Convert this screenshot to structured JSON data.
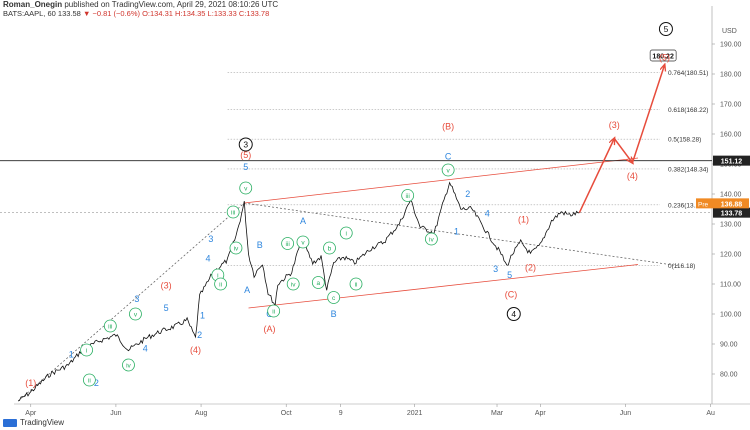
{
  "header": {
    "author": "Roman_Onegin",
    "published": "published on TradingView.com, April 29, 2021 08:10:26 UTC",
    "symbol": "BATS:AAPL, 60",
    "last": "133.58",
    "change": "▼ −0.81 (−0.6%)",
    "ohlc": "O:134.31 H:134.35 L:133.33 C:133.78"
  },
  "footer": {
    "logo_text": "TradingView"
  },
  "chart_data": {
    "type": "line",
    "title": "BATS:AAPL, 60",
    "currency": "USD",
    "ylim": [
      70,
      198
    ],
    "y_ticks": [
      80,
      90,
      100,
      110,
      120,
      130,
      140,
      150,
      160,
      170,
      180,
      190
    ],
    "x_range": [
      "2020-03-20",
      "2021-08-02"
    ],
    "x_ticks": [
      {
        "label": "Apr",
        "date": "2020-04-01"
      },
      {
        "label": "Jun",
        "date": "2020-06-01"
      },
      {
        "label": "Aug",
        "date": "2020-08-01"
      },
      {
        "label": "Oct",
        "date": "2020-10-01"
      },
      {
        "label": "9",
        "date": "2020-11-09"
      },
      {
        "label": "2021",
        "date": "2021-01-01"
      },
      {
        "label": "Mar",
        "date": "2021-03-01"
      },
      {
        "label": "Apr",
        "date": "2021-04-01"
      },
      {
        "label": "Jun",
        "date": "2021-06-01"
      },
      {
        "label": "Au",
        "date": "2021-08-01"
      }
    ],
    "price_path": [
      [
        "2020-03-23",
        71
      ],
      [
        "2020-04-01",
        74
      ],
      [
        "2020-04-15",
        80
      ],
      [
        "2020-04-28",
        83
      ],
      [
        "2020-05-08",
        88
      ],
      [
        "2020-05-20",
        91
      ],
      [
        "2020-06-01",
        93
      ],
      [
        "2020-06-10",
        88
      ],
      [
        "2020-06-23",
        92
      ],
      [
        "2020-07-02",
        94
      ],
      [
        "2020-07-14",
        96
      ],
      [
        "2020-07-22",
        98
      ],
      [
        "2020-07-28",
        92
      ],
      [
        "2020-07-31",
        106
      ],
      [
        "2020-08-10",
        114
      ],
      [
        "2020-08-20",
        118
      ],
      [
        "2020-08-26",
        126
      ],
      [
        "2020-09-01",
        137
      ],
      [
        "2020-09-04",
        120
      ],
      [
        "2020-09-08",
        113
      ],
      [
        "2020-09-14",
        117
      ],
      [
        "2020-09-18",
        107
      ],
      [
        "2020-09-23",
        103
      ],
      [
        "2020-09-25",
        110
      ],
      [
        "2020-10-05",
        114
      ],
      [
        "2020-10-12",
        125
      ],
      [
        "2020-10-20",
        117
      ],
      [
        "2020-10-26",
        119
      ],
      [
        "2020-10-30",
        108
      ],
      [
        "2020-11-04",
        117
      ],
      [
        "2020-11-11",
        119
      ],
      [
        "2020-11-19",
        117
      ],
      [
        "2020-12-01",
        122
      ],
      [
        "2020-12-10",
        124
      ],
      [
        "2020-12-21",
        130
      ],
      [
        "2020-12-29",
        138
      ],
      [
        "2021-01-05",
        129
      ],
      [
        "2021-01-15",
        127
      ],
      [
        "2021-01-26",
        144
      ],
      [
        "2021-02-03",
        135
      ],
      [
        "2021-02-11",
        135
      ],
      [
        "2021-02-22",
        127
      ],
      [
        "2021-03-04",
        120
      ],
      [
        "2021-03-08",
        116
      ],
      [
        "2021-03-12",
        120
      ],
      [
        "2021-03-18",
        124
      ],
      [
        "2021-03-25",
        120
      ],
      [
        "2021-04-01",
        123
      ],
      [
        "2021-04-09",
        131
      ],
      [
        "2021-04-16",
        134
      ],
      [
        "2021-04-22",
        133
      ],
      [
        "2021-04-29",
        133.78
      ]
    ],
    "projection_path": [
      [
        "2021-04-29",
        133.78
      ],
      [
        "2021-05-24",
        158.5
      ],
      [
        "2021-06-06",
        150.4
      ],
      [
        "2021-06-29",
        183
      ]
    ],
    "price_lines": [
      {
        "label": "151.12",
        "value": 151.12
      },
      {
        "label": "133.78",
        "value": 133.78
      }
    ],
    "price_tags": [
      {
        "label": "Pre",
        "value": "136.88",
        "y": 136.88
      }
    ],
    "fib_levels": [
      {
        "label": "0.764(180.51)",
        "value": 180.51
      },
      {
        "label": "0.618(168.22)",
        "value": 168.22
      },
      {
        "label": "0.5(158.28)",
        "value": 158.28
      },
      {
        "label": "0.382(148.34)",
        "value": 148.34
      },
      {
        "label": "0.236(13…",
        "value": 136.4
      },
      {
        "label": "0(116.18)",
        "value": 116.18
      }
    ],
    "fib_start": "2020-08-20",
    "fib_target_box": "180.22",
    "channel_lines": [
      {
        "from": [
          "2020-09-01",
          137
        ],
        "to": [
          "2021-06-10",
          152
        ],
        "color": "#e74c3c"
      },
      {
        "from": [
          "2020-09-04",
          102
        ],
        "to": [
          "2021-06-10",
          116.5
        ],
        "color": "#e74c3c"
      }
    ],
    "dotted_lines": [
      {
        "from": [
          "2020-03-23",
          71
        ],
        "to": [
          "2020-09-01",
          137
        ]
      },
      {
        "from": [
          "2020-09-01",
          137
        ],
        "to": [
          "2021-07-10",
          116
        ]
      }
    ],
    "wave_labels": [
      {
        "text": "(1)",
        "d": "2020-04-01",
        "y": 77,
        "color": "#e74c3c",
        "style": "paren"
      },
      {
        "text": "1",
        "d": "2020-04-30",
        "y": 86.5,
        "color": "#2e86de",
        "style": "plain"
      },
      {
        "text": "2",
        "d": "2020-05-18",
        "y": 77,
        "color": "#2e86de",
        "style": "plain"
      },
      {
        "text": "i",
        "d": "2020-05-11",
        "y": 88,
        "color": "#27ae60",
        "style": "circle"
      },
      {
        "text": "ii",
        "d": "2020-05-13",
        "y": 78,
        "color": "#27ae60",
        "style": "circle"
      },
      {
        "text": "iii",
        "d": "2020-05-28",
        "y": 96,
        "color": "#27ae60",
        "style": "circle"
      },
      {
        "text": "iv",
        "d": "2020-06-10",
        "y": 83,
        "color": "#27ae60",
        "style": "circle"
      },
      {
        "text": "v",
        "d": "2020-06-15",
        "y": 100,
        "color": "#27ae60",
        "style": "circle"
      },
      {
        "text": "3",
        "d": "2020-06-16",
        "y": 105,
        "color": "#2e86de",
        "style": "plain"
      },
      {
        "text": "4",
        "d": "2020-06-22",
        "y": 88.5,
        "color": "#2e86de",
        "style": "plain"
      },
      {
        "text": "5",
        "d": "2020-07-07",
        "y": 102,
        "color": "#2e86de",
        "style": "plain"
      },
      {
        "text": "(3)",
        "d": "2020-07-07",
        "y": 109.5,
        "color": "#e74c3c",
        "style": "paren"
      },
      {
        "text": "1",
        "d": "2020-08-02",
        "y": 99.5,
        "color": "#2e86de",
        "style": "plain"
      },
      {
        "text": "2",
        "d": "2020-07-31",
        "y": 93,
        "color": "#2e86de",
        "style": "plain"
      },
      {
        "text": "(4)",
        "d": "2020-07-28",
        "y": 88,
        "color": "#e74c3c",
        "style": "paren"
      },
      {
        "text": "3",
        "d": "2020-08-08",
        "y": 125,
        "color": "#2e86de",
        "style": "plain"
      },
      {
        "text": "4",
        "d": "2020-08-06",
        "y": 118.5,
        "color": "#2e86de",
        "style": "plain"
      },
      {
        "text": "i",
        "d": "2020-08-13",
        "y": 113,
        "color": "#27ae60",
        "style": "circle"
      },
      {
        "text": "ii",
        "d": "2020-08-15",
        "y": 110,
        "color": "#27ae60",
        "style": "circle"
      },
      {
        "text": "iii",
        "d": "2020-08-24",
        "y": 134,
        "color": "#27ae60",
        "style": "circle"
      },
      {
        "text": "iv",
        "d": "2020-08-26",
        "y": 122,
        "color": "#27ae60",
        "style": "circle"
      },
      {
        "text": "v",
        "d": "2020-09-02",
        "y": 142,
        "color": "#27ae60",
        "style": "circle"
      },
      {
        "text": "5",
        "d": "2020-09-02",
        "y": 149,
        "color": "#2e86de",
        "style": "plain"
      },
      {
        "text": "(5)",
        "d": "2020-09-02",
        "y": 153,
        "color": "#e74c3c",
        "style": "paren"
      },
      {
        "text": "3",
        "d": "2020-09-02",
        "y": 156.5,
        "color": "#111111",
        "style": "ring"
      },
      {
        "text": "A",
        "d": "2020-09-03",
        "y": 108,
        "color": "#2e86de",
        "style": "plain"
      },
      {
        "text": "B",
        "d": "2020-09-12",
        "y": 123,
        "color": "#2e86de",
        "style": "plain"
      },
      {
        "text": "C",
        "d": "2020-09-19",
        "y": 100,
        "color": "#2e86de",
        "style": "plain"
      },
      {
        "text": "ii",
        "d": "2020-09-22",
        "y": 101,
        "color": "#27ae60",
        "style": "circle"
      },
      {
        "text": "(A)",
        "d": "2020-09-19",
        "y": 95,
        "color": "#e74c3c",
        "style": "paren"
      },
      {
        "text": "iii",
        "d": "2020-10-02",
        "y": 123.5,
        "color": "#27ae60",
        "style": "circle"
      },
      {
        "text": "iv",
        "d": "2020-10-06",
        "y": 110,
        "color": "#27ae60",
        "style": "circle"
      },
      {
        "text": "A",
        "d": "2020-10-13",
        "y": 131,
        "color": "#2e86de",
        "style": "plain"
      },
      {
        "text": "v",
        "d": "2020-10-13",
        "y": 124,
        "color": "#27ae60",
        "style": "circle"
      },
      {
        "text": "a",
        "d": "2020-10-24",
        "y": 110.5,
        "color": "#27ae60",
        "style": "circle"
      },
      {
        "text": "b",
        "d": "2020-11-01",
        "y": 122,
        "color": "#27ae60",
        "style": "circle"
      },
      {
        "text": "c",
        "d": "2020-11-04",
        "y": 105.5,
        "color": "#27ae60",
        "style": "circle"
      },
      {
        "text": "B",
        "d": "2020-11-04",
        "y": 100,
        "color": "#2e86de",
        "style": "plain"
      },
      {
        "text": "i",
        "d": "2020-11-13",
        "y": 127,
        "color": "#27ae60",
        "style": "circle"
      },
      {
        "text": "ii",
        "d": "2020-11-20",
        "y": 110,
        "color": "#27ae60",
        "style": "circle"
      },
      {
        "text": "iii",
        "d": "2020-12-27",
        "y": 139.5,
        "color": "#27ae60",
        "style": "circle"
      },
      {
        "text": "iv",
        "d": "2021-01-13",
        "y": 125,
        "color": "#27ae60",
        "style": "circle"
      },
      {
        "text": "v",
        "d": "2021-01-25",
        "y": 148,
        "color": "#27ae60",
        "style": "circle"
      },
      {
        "text": "C",
        "d": "2021-01-25",
        "y": 152.5,
        "color": "#2e86de",
        "style": "plain"
      },
      {
        "text": "(B)",
        "d": "2021-01-25",
        "y": 162.5,
        "color": "#e74c3c",
        "style": "paren"
      },
      {
        "text": "1",
        "d": "2021-01-31",
        "y": 127.5,
        "color": "#2e86de",
        "style": "plain"
      },
      {
        "text": "2",
        "d": "2021-02-08",
        "y": 140,
        "color": "#2e86de",
        "style": "plain"
      },
      {
        "text": "4",
        "d": "2021-02-22",
        "y": 133.5,
        "color": "#2e86de",
        "style": "plain"
      },
      {
        "text": "3",
        "d": "2021-02-28",
        "y": 115,
        "color": "#2e86de",
        "style": "plain"
      },
      {
        "text": "5",
        "d": "2021-03-10",
        "y": 113,
        "color": "#2e86de",
        "style": "plain"
      },
      {
        "text": "(1)",
        "d": "2021-03-20",
        "y": 131.5,
        "color": "#e74c3c",
        "style": "paren"
      },
      {
        "text": "(2)",
        "d": "2021-03-25",
        "y": 115.5,
        "color": "#e74c3c",
        "style": "paren"
      },
      {
        "text": "(C)",
        "d": "2021-03-11",
        "y": 106.5,
        "color": "#e74c3c",
        "style": "paren"
      },
      {
        "text": "4",
        "d": "2021-03-13",
        "y": 100,
        "color": "#111111",
        "style": "ring"
      },
      {
        "text": "(3)",
        "d": "2021-05-24",
        "y": 163,
        "color": "#e74c3c",
        "style": "paren"
      },
      {
        "text": "(4)",
        "d": "2021-06-06",
        "y": 146,
        "color": "#e74c3c",
        "style": "paren"
      },
      {
        "text": "(5)",
        "d": "2021-06-29",
        "y": 185.5,
        "color": "#e74c3c",
        "style": "paren"
      },
      {
        "text": "5",
        "d": "2021-06-30",
        "y": 195,
        "color": "#111111",
        "style": "ring"
      }
    ]
  }
}
